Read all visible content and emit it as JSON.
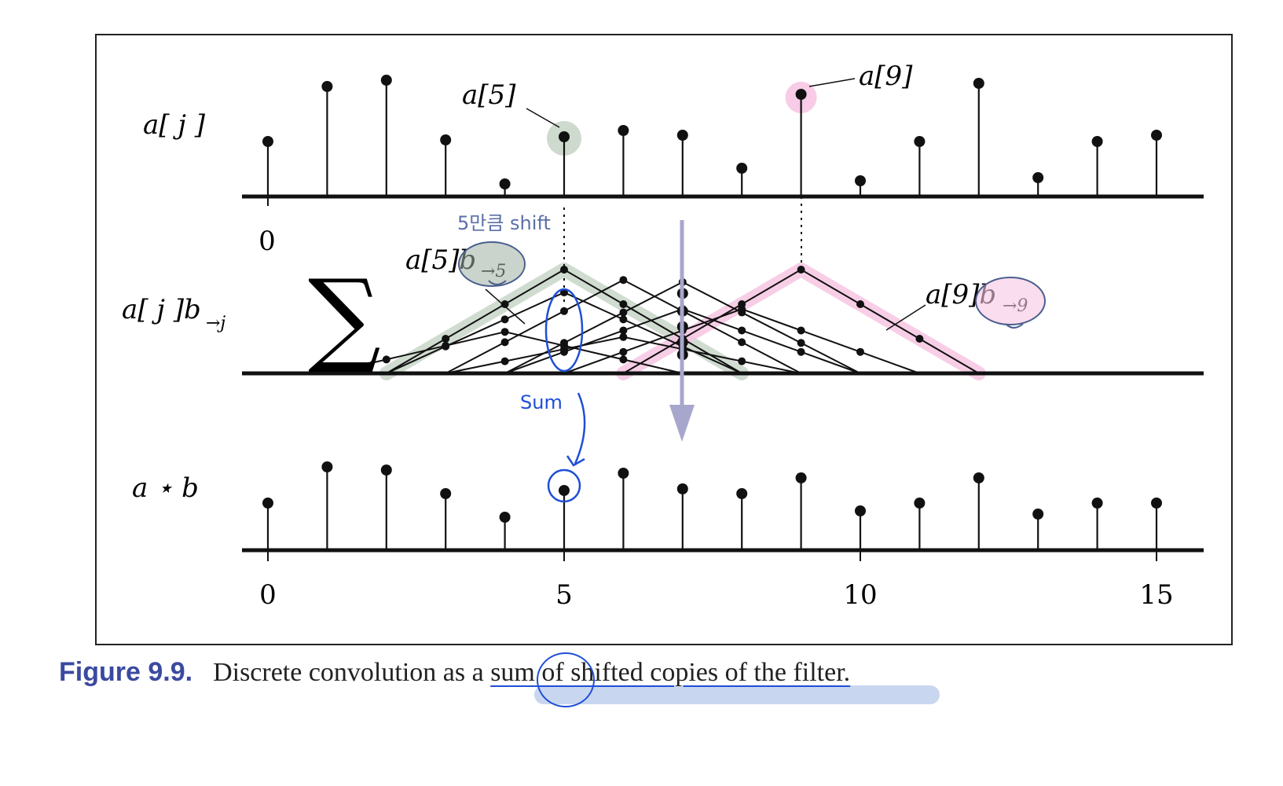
{
  "labels": {
    "row_a": "a[ j ]",
    "row_mid_a": "a[ j ]b",
    "row_mid_sub": "→j",
    "row_conv": "a ⋆ b",
    "sigma": "∑",
    "a5": "a[5]",
    "a9": "a[9]",
    "a5b": "a[5]b",
    "a5b_sub": "→5",
    "a9b": "a[9]b",
    "a9b_sub": "→9"
  },
  "top_axis_tick": "0",
  "bottom_axis_ticks": [
    "0",
    "5",
    "10",
    "15"
  ],
  "annotations": {
    "shift_note": "5만큼 shift",
    "sum_note": "Sum"
  },
  "caption": {
    "label": "Figure 9.9.",
    "pre": "Discrete convolution as a ",
    "sum_word": "sum",
    "post": " of shifted copies of the filter."
  },
  "colors": {
    "stem": "#111111",
    "green_highlight": "#c6d3c6",
    "pink_highlight": "#f7c6e3",
    "pen_blue": "#1f4fd6",
    "arrow_purple": "#a7a6cc",
    "caption_label": "#3b4aa0"
  },
  "signal_a": [
    3.5,
    7.0,
    7.4,
    3.6,
    0.8,
    3.8,
    4.2,
    3.9,
    1.8,
    6.5,
    1.0,
    3.5,
    7.2,
    1.2,
    3.5,
    3.9
  ],
  "shifted_filter_peaks": [
    1.0,
    0.8,
    0.9,
    0.9,
    0.6,
    1.0
  ],
  "convolution_result": [
    3.0,
    5.3,
    5.1,
    3.6,
    2.1,
    3.8,
    4.9,
    3.9,
    3.6,
    4.6,
    2.5,
    3.0,
    4.6,
    2.3,
    3.0,
    3.0
  ]
}
